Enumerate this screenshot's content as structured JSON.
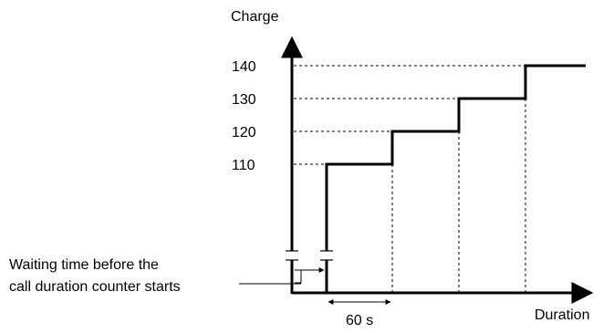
{
  "diagram": {
    "y_axis_label": "Charge",
    "x_axis_label": "Duration",
    "tick_labels": [
      "140",
      "130",
      "120",
      "110"
    ],
    "note_line_1": "Waiting time before the",
    "note_line_2": "call duration counter starts",
    "interval_label": "60 s"
  },
  "chart_data": {
    "type": "line",
    "ylabel": "Charge",
    "xlabel": "Duration",
    "y_ticks": [
      110,
      120,
      130,
      140
    ],
    "step_interval_label": "60 s",
    "steps": [
      {
        "interval": 1,
        "charge": 110
      },
      {
        "interval": 2,
        "charge": 120
      },
      {
        "interval": 3,
        "charge": 130
      },
      {
        "interval": 4,
        "charge": 140
      }
    ]
  }
}
